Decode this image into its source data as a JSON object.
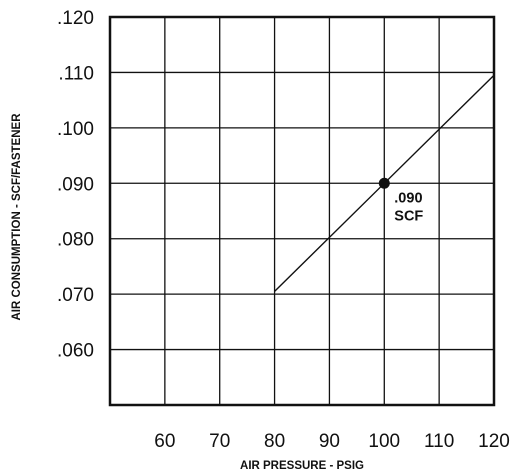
{
  "chart_data": {
    "type": "line",
    "title": "",
    "xlabel": "AIR PRESSURE - PSIG",
    "ylabel": "AIR CONSUMPTION - SCF/FASTENER",
    "xlim": [
      50,
      120
    ],
    "ylim": [
      0.05,
      0.12
    ],
    "x_ticks": [
      60,
      70,
      80,
      90,
      100,
      110,
      120
    ],
    "x_tick_labels": [
      "60",
      "70",
      "80",
      "90",
      "100",
      "110",
      "120"
    ],
    "y_ticks": [
      0.06,
      0.07,
      0.08,
      0.09,
      0.1,
      0.11,
      0.12
    ],
    "y_tick_labels": [
      ".060",
      ".070",
      ".080",
      ".090",
      ".100",
      ".110",
      ".120"
    ],
    "grid": true,
    "series": [
      {
        "x": [
          80,
          120
        ],
        "y": [
          0.0705,
          0.1095
        ],
        "color": "#111111"
      }
    ],
    "highlight": {
      "x": 100,
      "y": 0.09,
      "label_line1": ".090",
      "label_line2": "SCF"
    }
  }
}
